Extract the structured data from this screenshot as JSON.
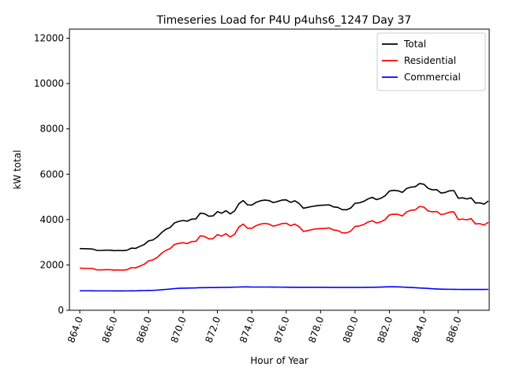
{
  "chart_data": {
    "type": "line",
    "title": "Timeseries Load for P4U p4uhs6_1247  Day 37",
    "xlabel": "Hour of Year",
    "ylabel": "kW total",
    "xlim": [
      863.4,
      887.8
    ],
    "ylim": [
      0,
      12400
    ],
    "x_ticks": [
      864,
      866,
      868,
      870,
      872,
      874,
      876,
      878,
      880,
      882,
      884,
      886
    ],
    "x_tick_labels": [
      "864.0",
      "866.0",
      "868.0",
      "870.0",
      "872.0",
      "874.0",
      "876.0",
      "878.0",
      "880.0",
      "882.0",
      "884.0",
      "886.0"
    ],
    "y_ticks": [
      0,
      2000,
      4000,
      6000,
      8000,
      10000,
      12000
    ],
    "y_tick_labels": [
      "0",
      "2000",
      "4000",
      "6000",
      "8000",
      "10000",
      "12000"
    ],
    "legend_position": "top-right",
    "series": [
      {
        "name": "Total",
        "color": "#000000",
        "points": [
          [
            864.0,
            2720
          ],
          [
            864.25,
            2715
          ],
          [
            864.5,
            2710
          ],
          [
            864.75,
            2700
          ],
          [
            865.0,
            2640
          ],
          [
            865.25,
            2640
          ],
          [
            865.5,
            2650
          ],
          [
            865.75,
            2650
          ],
          [
            866.0,
            2630
          ],
          [
            866.25,
            2640
          ],
          [
            866.5,
            2630
          ],
          [
            866.75,
            2650
          ],
          [
            867.0,
            2740
          ],
          [
            867.25,
            2730
          ],
          [
            867.5,
            2820
          ],
          [
            867.75,
            2900
          ],
          [
            868.0,
            3060
          ],
          [
            868.25,
            3100
          ],
          [
            868.5,
            3230
          ],
          [
            868.75,
            3420
          ],
          [
            869.0,
            3570
          ],
          [
            869.25,
            3650
          ],
          [
            869.5,
            3850
          ],
          [
            869.75,
            3920
          ],
          [
            870.0,
            3960
          ],
          [
            870.25,
            3930
          ],
          [
            870.5,
            4020
          ],
          [
            870.75,
            4030
          ],
          [
            871.0,
            4280
          ],
          [
            871.25,
            4260
          ],
          [
            871.5,
            4150
          ],
          [
            871.75,
            4160
          ],
          [
            872.0,
            4350
          ],
          [
            872.25,
            4280
          ],
          [
            872.5,
            4390
          ],
          [
            872.75,
            4250
          ],
          [
            873.0,
            4380
          ],
          [
            873.25,
            4700
          ],
          [
            873.5,
            4840
          ],
          [
            873.75,
            4650
          ],
          [
            874.0,
            4640
          ],
          [
            874.25,
            4760
          ],
          [
            874.5,
            4830
          ],
          [
            874.75,
            4860
          ],
          [
            875.0,
            4840
          ],
          [
            875.25,
            4750
          ],
          [
            875.5,
            4800
          ],
          [
            875.75,
            4860
          ],
          [
            876.0,
            4870
          ],
          [
            876.25,
            4760
          ],
          [
            876.5,
            4830
          ],
          [
            876.75,
            4710
          ],
          [
            877.0,
            4500
          ],
          [
            877.25,
            4540
          ],
          [
            877.5,
            4580
          ],
          [
            877.75,
            4610
          ],
          [
            878.0,
            4630
          ],
          [
            878.25,
            4640
          ],
          [
            878.5,
            4650
          ],
          [
            878.75,
            4560
          ],
          [
            879.0,
            4540
          ],
          [
            879.25,
            4440
          ],
          [
            879.5,
            4430
          ],
          [
            879.75,
            4510
          ],
          [
            880.0,
            4720
          ],
          [
            880.25,
            4740
          ],
          [
            880.5,
            4800
          ],
          [
            880.75,
            4910
          ],
          [
            881.0,
            4980
          ],
          [
            881.25,
            4880
          ],
          [
            881.5,
            4940
          ],
          [
            881.75,
            5050
          ],
          [
            882.0,
            5260
          ],
          [
            882.25,
            5290
          ],
          [
            882.5,
            5270
          ],
          [
            882.75,
            5200
          ],
          [
            883.0,
            5370
          ],
          [
            883.25,
            5430
          ],
          [
            883.5,
            5450
          ],
          [
            883.75,
            5590
          ],
          [
            884.0,
            5560
          ],
          [
            884.25,
            5380
          ],
          [
            884.5,
            5310
          ],
          [
            884.75,
            5320
          ],
          [
            885.0,
            5170
          ],
          [
            885.25,
            5200
          ],
          [
            885.5,
            5270
          ],
          [
            885.75,
            5280
          ],
          [
            886.0,
            4940
          ],
          [
            886.25,
            4960
          ],
          [
            886.5,
            4910
          ],
          [
            886.75,
            4960
          ],
          [
            887.0,
            4730
          ],
          [
            887.25,
            4740
          ],
          [
            887.5,
            4680
          ],
          [
            887.75,
            4820
          ]
        ]
      },
      {
        "name": "Residential",
        "color": "#ff0000",
        "points": [
          [
            864.0,
            1860
          ],
          [
            864.25,
            1850
          ],
          [
            864.5,
            1850
          ],
          [
            864.75,
            1840
          ],
          [
            865.0,
            1780
          ],
          [
            865.25,
            1780
          ],
          [
            865.5,
            1790
          ],
          [
            865.75,
            1790
          ],
          [
            866.0,
            1770
          ],
          [
            866.25,
            1780
          ],
          [
            866.5,
            1770
          ],
          [
            866.75,
            1790
          ],
          [
            867.0,
            1880
          ],
          [
            867.25,
            1870
          ],
          [
            867.5,
            1950
          ],
          [
            867.75,
            2030
          ],
          [
            868.0,
            2180
          ],
          [
            868.25,
            2220
          ],
          [
            868.5,
            2330
          ],
          [
            868.75,
            2510
          ],
          [
            869.0,
            2640
          ],
          [
            869.25,
            2720
          ],
          [
            869.5,
            2900
          ],
          [
            869.75,
            2950
          ],
          [
            870.0,
            2980
          ],
          [
            870.25,
            2940
          ],
          [
            870.5,
            3030
          ],
          [
            870.75,
            3040
          ],
          [
            871.0,
            3280
          ],
          [
            871.25,
            3260
          ],
          [
            871.5,
            3150
          ],
          [
            871.75,
            3160
          ],
          [
            872.0,
            3340
          ],
          [
            872.25,
            3270
          ],
          [
            872.5,
            3380
          ],
          [
            872.75,
            3230
          ],
          [
            873.0,
            3350
          ],
          [
            873.25,
            3670
          ],
          [
            873.5,
            3800
          ],
          [
            873.75,
            3620
          ],
          [
            874.0,
            3620
          ],
          [
            874.25,
            3730
          ],
          [
            874.5,
            3800
          ],
          [
            874.75,
            3830
          ],
          [
            875.0,
            3800
          ],
          [
            875.25,
            3710
          ],
          [
            875.5,
            3760
          ],
          [
            875.75,
            3820
          ],
          [
            876.0,
            3840
          ],
          [
            876.25,
            3730
          ],
          [
            876.5,
            3800
          ],
          [
            876.75,
            3690
          ],
          [
            877.0,
            3480
          ],
          [
            877.25,
            3510
          ],
          [
            877.5,
            3560
          ],
          [
            877.75,
            3590
          ],
          [
            878.0,
            3600
          ],
          [
            878.25,
            3610
          ],
          [
            878.5,
            3630
          ],
          [
            878.75,
            3540
          ],
          [
            879.0,
            3520
          ],
          [
            879.25,
            3420
          ],
          [
            879.5,
            3410
          ],
          [
            879.75,
            3490
          ],
          [
            880.0,
            3700
          ],
          [
            880.25,
            3720
          ],
          [
            880.5,
            3780
          ],
          [
            880.75,
            3890
          ],
          [
            881.0,
            3950
          ],
          [
            881.25,
            3850
          ],
          [
            881.5,
            3900
          ],
          [
            881.75,
            4000
          ],
          [
            882.0,
            4210
          ],
          [
            882.25,
            4240
          ],
          [
            882.5,
            4230
          ],
          [
            882.75,
            4160
          ],
          [
            883.0,
            4340
          ],
          [
            883.25,
            4410
          ],
          [
            883.5,
            4430
          ],
          [
            883.75,
            4580
          ],
          [
            884.0,
            4550
          ],
          [
            884.25,
            4380
          ],
          [
            884.5,
            4340
          ],
          [
            884.75,
            4360
          ],
          [
            885.0,
            4220
          ],
          [
            885.25,
            4260
          ],
          [
            885.5,
            4330
          ],
          [
            885.75,
            4340
          ],
          [
            886.0,
            4000
          ],
          [
            886.25,
            4020
          ],
          [
            886.5,
            3990
          ],
          [
            886.75,
            4040
          ],
          [
            887.0,
            3810
          ],
          [
            887.25,
            3820
          ],
          [
            887.5,
            3760
          ],
          [
            887.75,
            3880
          ]
        ]
      },
      {
        "name": "Commercial",
        "color": "#0000ff",
        "points": [
          [
            864.0,
            860
          ],
          [
            864.25,
            860
          ],
          [
            864.5,
            860
          ],
          [
            864.75,
            858
          ],
          [
            865.0,
            855
          ],
          [
            865.25,
            855
          ],
          [
            865.5,
            855
          ],
          [
            865.75,
            855
          ],
          [
            866.0,
            852
          ],
          [
            866.25,
            852
          ],
          [
            866.5,
            852
          ],
          [
            866.75,
            855
          ],
          [
            867.0,
            860
          ],
          [
            867.25,
            855
          ],
          [
            867.5,
            865
          ],
          [
            867.75,
            868
          ],
          [
            868.0,
            875
          ],
          [
            868.25,
            878
          ],
          [
            868.5,
            890
          ],
          [
            868.75,
            905
          ],
          [
            869.0,
            920
          ],
          [
            869.25,
            935
          ],
          [
            869.5,
            955
          ],
          [
            869.75,
            970
          ],
          [
            870.0,
            975
          ],
          [
            870.25,
            980
          ],
          [
            870.5,
            985
          ],
          [
            870.75,
            988
          ],
          [
            871.0,
            995
          ],
          [
            871.25,
            998
          ],
          [
            871.5,
            1000
          ],
          [
            871.75,
            1000
          ],
          [
            872.0,
            1005
          ],
          [
            872.25,
            1008
          ],
          [
            872.5,
            1010
          ],
          [
            872.75,
            1015
          ],
          [
            873.0,
            1020
          ],
          [
            873.25,
            1025
          ],
          [
            873.5,
            1030
          ],
          [
            873.75,
            1030
          ],
          [
            874.0,
            1025
          ],
          [
            874.25,
            1025
          ],
          [
            874.5,
            1025
          ],
          [
            874.75,
            1025
          ],
          [
            875.0,
            1025
          ],
          [
            875.25,
            1022
          ],
          [
            875.5,
            1020
          ],
          [
            875.75,
            1020
          ],
          [
            876.0,
            1018
          ],
          [
            876.25,
            1015
          ],
          [
            876.5,
            1015
          ],
          [
            876.75,
            1015
          ],
          [
            877.0,
            1015
          ],
          [
            877.25,
            1015
          ],
          [
            877.5,
            1015
          ],
          [
            877.75,
            1015
          ],
          [
            878.0,
            1015
          ],
          [
            878.25,
            1012
          ],
          [
            878.5,
            1010
          ],
          [
            878.75,
            1010
          ],
          [
            879.0,
            1010
          ],
          [
            879.25,
            1010
          ],
          [
            879.5,
            1010
          ],
          [
            879.75,
            1010
          ],
          [
            880.0,
            1010
          ],
          [
            880.25,
            1010
          ],
          [
            880.5,
            1010
          ],
          [
            880.75,
            1012
          ],
          [
            881.0,
            1015
          ],
          [
            881.25,
            1018
          ],
          [
            881.5,
            1022
          ],
          [
            881.75,
            1030
          ],
          [
            882.0,
            1035
          ],
          [
            882.25,
            1035
          ],
          [
            882.5,
            1030
          ],
          [
            882.75,
            1025
          ],
          [
            883.0,
            1015
          ],
          [
            883.25,
            1005
          ],
          [
            883.5,
            995
          ],
          [
            883.75,
            985
          ],
          [
            884.0,
            975
          ],
          [
            884.25,
            965
          ],
          [
            884.5,
            950
          ],
          [
            884.75,
            940
          ],
          [
            885.0,
            932
          ],
          [
            885.25,
            928
          ],
          [
            885.5,
            925
          ],
          [
            885.75,
            922
          ],
          [
            886.0,
            920
          ],
          [
            886.25,
            918
          ],
          [
            886.5,
            918
          ],
          [
            886.75,
            918
          ],
          [
            887.0,
            918
          ],
          [
            887.25,
            918
          ],
          [
            887.5,
            918
          ],
          [
            887.75,
            920
          ]
        ]
      }
    ]
  }
}
